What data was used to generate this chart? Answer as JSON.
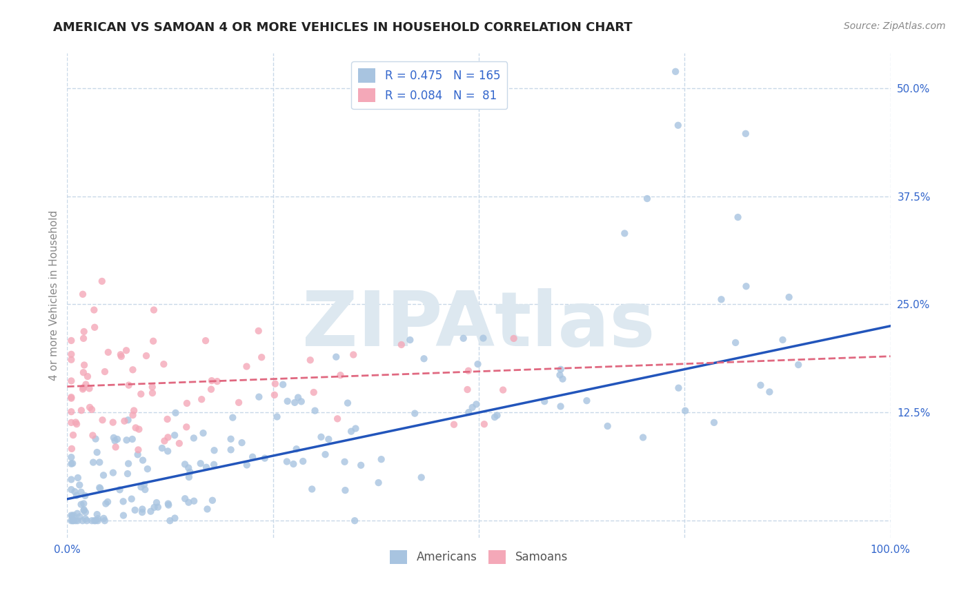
{
  "title": "AMERICAN VS SAMOAN 4 OR MORE VEHICLES IN HOUSEHOLD CORRELATION CHART",
  "source": "Source: ZipAtlas.com",
  "ylabel": "4 or more Vehicles in Household",
  "xlim": [
    0.0,
    1.0
  ],
  "ylim": [
    -0.02,
    0.54
  ],
  "xticks": [
    0.0,
    0.25,
    0.5,
    0.75,
    1.0
  ],
  "xticklabels": [
    "0.0%",
    "",
    "",
    "",
    "100.0%"
  ],
  "yticks_right": [
    0.125,
    0.25,
    0.375,
    0.5
  ],
  "yticklabels_right": [
    "12.5%",
    "25.0%",
    "37.5%",
    "50.0%"
  ],
  "american_R": 0.475,
  "american_N": 165,
  "samoan_R": 0.084,
  "samoan_N": 81,
  "american_color": "#a8c4e0",
  "samoan_color": "#f4a8b8",
  "american_line_color": "#2255bb",
  "samoan_line_color": "#e06880",
  "background_color": "#ffffff",
  "grid_color": "#c8d8e8",
  "title_color": "#222222",
  "legend_text_color": "#3366cc",
  "watermark": "ZIPAtlas",
  "watermark_color": "#dde8f0"
}
